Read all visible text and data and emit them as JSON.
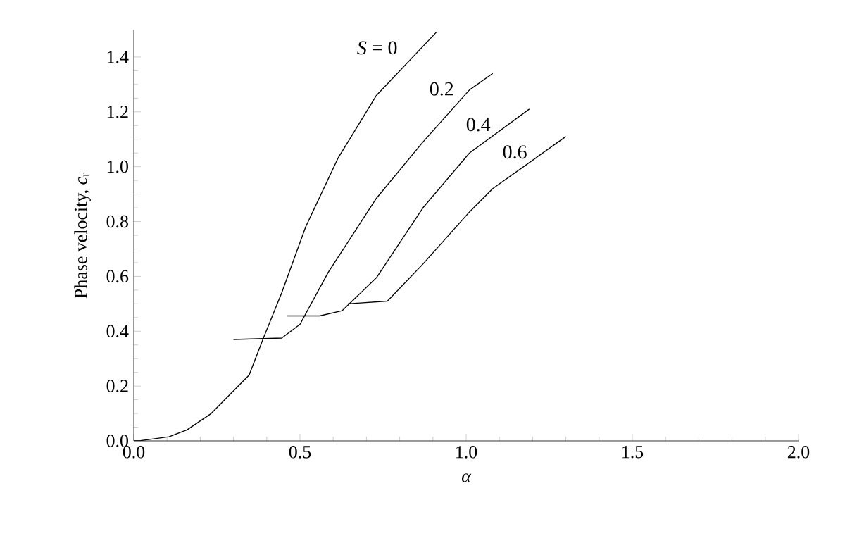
{
  "chart_data": {
    "type": "line",
    "xlabel": "α",
    "ylabel": "Phase velocity, *c*$_{r}$",
    "xlim": [
      0,
      2
    ],
    "ylim": [
      0,
      1.5
    ],
    "xticks": [
      {
        "value": 0,
        "label": "0.0"
      },
      0.5,
      {
        "value": 1,
        "label": "1.0"
      },
      1.5,
      {
        "value": 2,
        "label": "2.0"
      }
    ],
    "yticks": [
      {
        "value": 0,
        "label": "0.0"
      },
      0.2,
      0.4,
      0.6,
      0.8,
      {
        "value": 1,
        "label": "1.0"
      },
      1.2,
      1.4
    ],
    "grid": false,
    "marker": "none",
    "line_style": "solid",
    "series": [
      {
        "name": "*S* = 0",
        "color": "#000000",
        "x": [
          0.0,
          0.02,
          0.106,
          0.16,
          0.233,
          0.347,
          0.39,
          0.445,
          0.517,
          0.614,
          0.73,
          0.91
        ],
        "values": [
          0.0,
          0.001,
          0.015,
          0.04,
          0.1,
          0.24,
          0.375,
          0.54,
          0.78,
          1.03,
          1.26,
          1.49
        ]
      },
      {
        "name": "0.2",
        "color": "#000000",
        "x": [
          0.3,
          0.445,
          0.5,
          0.585,
          0.73,
          0.87,
          1.01,
          1.08
        ],
        "values": [
          0.37,
          0.375,
          0.425,
          0.615,
          0.885,
          1.09,
          1.28,
          1.34
        ]
      },
      {
        "name": "0.4",
        "color": "#000000",
        "x": [
          0.462,
          0.559,
          0.627,
          0.73,
          0.87,
          1.01,
          1.19
        ],
        "values": [
          0.456,
          0.456,
          0.475,
          0.595,
          0.85,
          1.05,
          1.21
        ]
      },
      {
        "name": "0.6",
        "color": "#000000",
        "x": [
          0.644,
          0.763,
          0.87,
          1.01,
          1.08,
          1.3
        ],
        "values": [
          0.5,
          0.51,
          0.645,
          0.835,
          0.92,
          1.11
        ]
      }
    ]
  }
}
